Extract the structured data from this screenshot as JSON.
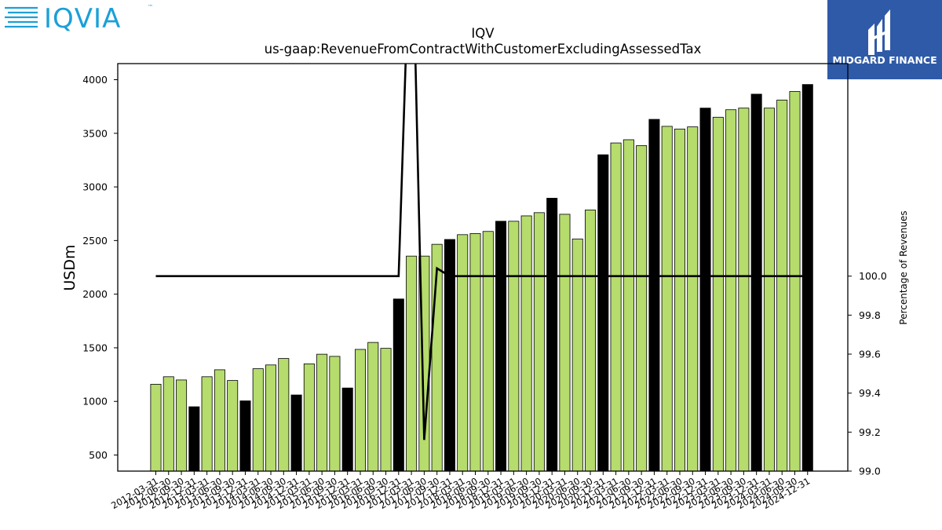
{
  "logos": {
    "iqvia": {
      "text": "IQVIA",
      "tm": "™",
      "color": "#1aa0d8",
      "dark": "#0a4a7a"
    },
    "midgard": {
      "text": "MIDGARD FINANCE",
      "background": "#2f5aa8",
      "foreground": "#ffffff"
    }
  },
  "chart_data": {
    "type": "bar",
    "title": "IQV",
    "subtitle": "us-gaap:RevenueFromContractWithCustomerExcludingAssessedTax",
    "ylabel": "USDm",
    "y2label": "Percentage of Revenues",
    "ylim": [
      350,
      4150
    ],
    "y2lim": [
      99.0,
      101.09
    ],
    "yticks": [
      500,
      1000,
      1500,
      2000,
      2500,
      3000,
      3500,
      4000
    ],
    "y2ticks": [
      "99.0",
      "99.2",
      "99.4",
      "99.6",
      "99.8",
      "100.0"
    ],
    "colors": {
      "quarter": "#b5dc6c",
      "year_end": "#000000",
      "line": "#000000"
    },
    "categories": [
      "2012-03-31",
      "2012-06-30",
      "2012-09-30",
      "2012-12-31",
      "2013-03-31",
      "2013-06-30",
      "2013-09-30",
      "2013-12-31",
      "2014-03-31",
      "2014-06-30",
      "2014-09-30",
      "2014-12-31",
      "2015-03-31",
      "2015-06-30",
      "2015-09-30",
      "2015-12-31",
      "2016-03-31",
      "2016-06-30",
      "2016-09-30",
      "2016-12-31",
      "2017-03-31",
      "2017-06-30",
      "2017-09-30",
      "2017-12-31",
      "2018-03-31",
      "2018-06-30",
      "2018-09-30",
      "2018-12-31",
      "2019-03-31",
      "2019-06-30",
      "2019-09-30",
      "2019-12-31",
      "2020-03-31",
      "2020-06-30",
      "2020-09-30",
      "2020-12-31",
      "2021-03-31",
      "2021-06-30",
      "2021-09-30",
      "2021-12-31",
      "2022-03-31",
      "2022-06-30",
      "2022-09-30",
      "2022-12-31",
      "2023-03-31",
      "2023-06-30",
      "2023-09-30",
      "2023-12-31",
      "2024-03-31",
      "2024-06-30",
      "2024-09-30",
      "2024-12-31"
    ],
    "values": [
      1160,
      1230,
      1200,
      950,
      1230,
      1295,
      1195,
      1005,
      1305,
      1340,
      1400,
      1060,
      1350,
      1440,
      1420,
      1125,
      1485,
      1550,
      1495,
      1955,
      2355,
      2355,
      2465,
      2510,
      2555,
      2565,
      2585,
      2680,
      2680,
      2730,
      2760,
      2895,
      2745,
      2515,
      2785,
      3300,
      3410,
      3440,
      3385,
      3630,
      3565,
      3540,
      3560,
      3735,
      3650,
      3720,
      3735,
      3865,
      3735,
      3810,
      3890,
      3955
    ],
    "year_end": [
      false,
      false,
      false,
      true,
      false,
      false,
      false,
      true,
      false,
      false,
      false,
      true,
      false,
      false,
      false,
      true,
      false,
      false,
      false,
      true,
      false,
      false,
      false,
      true,
      false,
      false,
      false,
      true,
      false,
      false,
      false,
      true,
      false,
      false,
      false,
      true,
      false,
      false,
      false,
      true,
      false,
      false,
      false,
      true,
      false,
      false,
      false,
      true,
      false,
      false,
      false,
      true
    ],
    "percentage_series": {
      "name": "Percentage of Revenues",
      "values": [
        100,
        100,
        100,
        100,
        100,
        100,
        100,
        100,
        100,
        100,
        100,
        100,
        100,
        100,
        100,
        100,
        100,
        100,
        100,
        100,
        102,
        99.16,
        100.04,
        100,
        100,
        100,
        100,
        100,
        100,
        100,
        100,
        100,
        100,
        100,
        100,
        100,
        100,
        100,
        100,
        100,
        100,
        100,
        100,
        100,
        100,
        100,
        100,
        100,
        100,
        100,
        100,
        100
      ]
    }
  }
}
